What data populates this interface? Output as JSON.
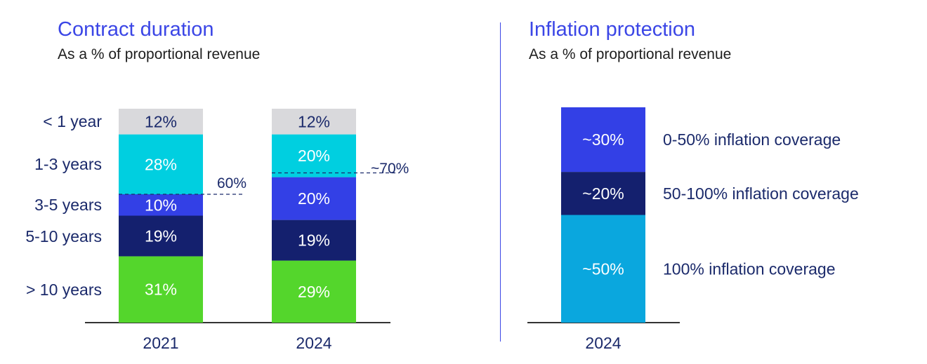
{
  "colors": {
    "title": "#3b46e6",
    "navy": "#1b2a6b",
    "divider": "#3b46e6",
    "segment_lt1": "#d9d9dc",
    "segment_1_3": "#00cfe0",
    "segment_3_5": "#3340e6",
    "segment_5_10": "#14206e",
    "segment_gt10": "#54d62c",
    "infl_0_50": "#3340e6",
    "infl_50_100": "#14206e",
    "infl_100": "#0aa7de",
    "axis": "#333333"
  },
  "chart_data": [
    {
      "type": "bar",
      "stacked": true,
      "title": "Contract duration",
      "subtitle": "As a % of proportional revenue",
      "categories": [
        "2021",
        "2024"
      ],
      "series": [
        {
          "name": "> 10 years",
          "values": [
            31,
            29
          ],
          "labels": [
            "31%",
            "29%"
          ],
          "color_key": "segment_gt10"
        },
        {
          "name": "5-10 years",
          "values": [
            19,
            19
          ],
          "labels": [
            "19%",
            "19%"
          ],
          "color_key": "segment_5_10"
        },
        {
          "name": "3-5 years",
          "values": [
            10,
            20
          ],
          "labels": [
            "10%",
            "20%"
          ],
          "color_key": "segment_3_5"
        },
        {
          "name": "1-3 years",
          "values": [
            28,
            20
          ],
          "labels": [
            "28%",
            "20%"
          ],
          "color_key": "segment_1_3"
        },
        {
          "name": "< 1 year",
          "values": [
            12,
            12
          ],
          "labels": [
            "12%",
            "12%"
          ],
          "color_key": "segment_lt1"
        }
      ],
      "annotations": [
        {
          "category": "2021",
          "value": 60,
          "text": "60%"
        },
        {
          "category": "2024",
          "value": 70,
          "text": "~70%"
        }
      ],
      "ylim": [
        0,
        100
      ]
    },
    {
      "type": "bar",
      "stacked": true,
      "title": "Inflation protection",
      "subtitle": "As a % of proportional revenue",
      "categories": [
        "2024"
      ],
      "series": [
        {
          "name": "100% inflation coverage",
          "values": [
            50
          ],
          "labels": [
            "~50%"
          ],
          "color_key": "infl_100"
        },
        {
          "name": "50-100% inflation coverage",
          "values": [
            20
          ],
          "labels": [
            "~20%"
          ],
          "color_key": "infl_50_100"
        },
        {
          "name": "0-50% inflation coverage",
          "values": [
            30
          ],
          "labels": [
            "~30%"
          ],
          "color_key": "infl_0_50"
        }
      ],
      "ylim": [
        0,
        100
      ]
    }
  ]
}
